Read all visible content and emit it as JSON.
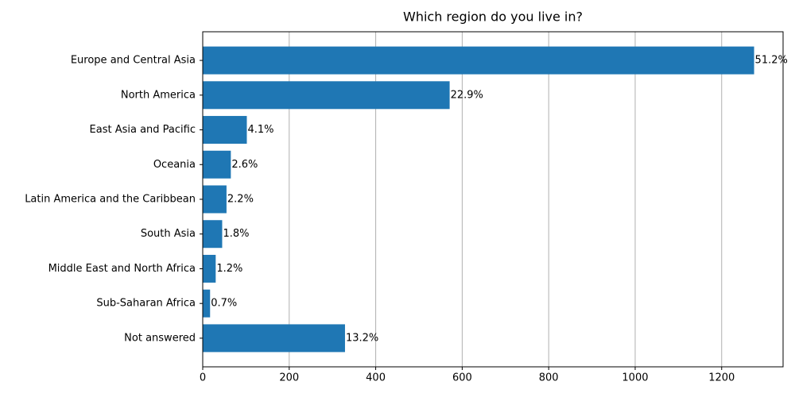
{
  "chart_data": {
    "type": "barh",
    "title": "Which region do you live in?",
    "categories": [
      "Europe and Central Asia",
      "North America",
      "East Asia and Pacific",
      "Oceania",
      "Latin America and the Caribbean",
      "South Asia",
      "Middle East and North Africa",
      "Sub-Saharan Africa",
      "Not answered"
    ],
    "values": [
      1275,
      571,
      102,
      65,
      55,
      45,
      30,
      17,
      329
    ],
    "value_labels": [
      "51.2%",
      "22.9%",
      "4.1%",
      "2.6%",
      "2.2%",
      "1.8%",
      "1.2%",
      "0.7%",
      "13.2%"
    ],
    "color": "#1f77b4",
    "xlim": [
      0,
      1342
    ],
    "xticks": [
      0,
      200,
      400,
      600,
      800,
      1000,
      1200
    ],
    "grid": true
  }
}
